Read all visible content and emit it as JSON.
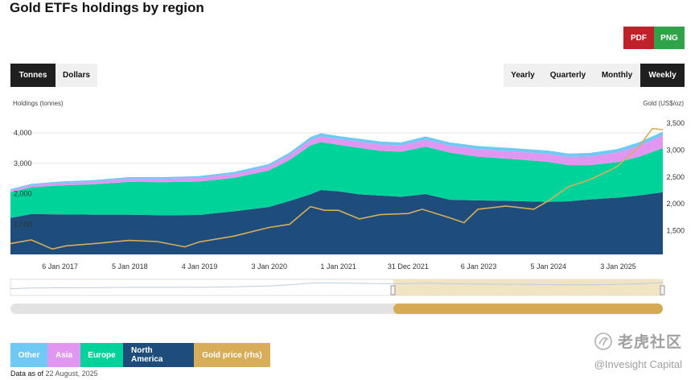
{
  "title": "Gold ETFs holdings by region",
  "export": {
    "pdf_label": "PDF",
    "png_label": "PNG"
  },
  "unit_toggle": {
    "items": [
      "Tonnes",
      "Dollars"
    ],
    "selected": "Tonnes"
  },
  "period_toggle": {
    "items": [
      "Yearly",
      "Quarterly",
      "Monthly",
      "Weekly"
    ],
    "selected": "Weekly"
  },
  "footer": {
    "data_as_of_label": "Data as of",
    "data_as_of_date": "22 August, 2025"
  },
  "watermark": {
    "cn": "老虎社区",
    "en": "@Invesight Capital"
  },
  "colors": {
    "other": "#6ec9f5",
    "asia": "#e196f2",
    "europe": "#00d39a",
    "north_america": "#1e4d7b",
    "gold": "#d8ad58",
    "active_toggle": "#1f1f1f"
  },
  "icons": {
    "watermark": "tiger-logo-icon",
    "navigator_handle": "grip-handle-icon"
  },
  "chart_data": {
    "type": "area",
    "title": "Gold ETFs holdings by region",
    "ylabel_left": "Holdings (tonnes)",
    "ylabel_right": "Gold (US$/oz)",
    "y_left_ticks": [
      1000,
      2000,
      3000,
      4000
    ],
    "y_left_tick_labels": [
      "1,000",
      "2,000",
      "3,000",
      "4,000"
    ],
    "y_left_range": [
      0,
      4800
    ],
    "y_right_ticks": [
      1500,
      2000,
      2500,
      3000,
      3500
    ],
    "y_right_tick_labels": [
      "1,500",
      "2,000",
      "2,500",
      "3,000",
      "3,500"
    ],
    "y_right_range": [
      1060,
      3770
    ],
    "x_range": [
      2016.3,
      2025.65
    ],
    "x_tick_values": [
      2017.01,
      2018.01,
      2019.01,
      2020.01,
      2021.0,
      2022.0,
      2023.01,
      2024.01,
      2025.01
    ],
    "x_tick_labels": [
      "6 Jan 2017",
      "5 Jan 2018",
      "4 Jan 2019",
      "3 Jan 2020",
      "1 Jan 2021",
      "31 Dec 2021",
      "6 Jan 2023",
      "5 Jan 2024",
      "3 Jan 2025"
    ],
    "stack_order": [
      "North America",
      "Europe",
      "Asia",
      "Other"
    ],
    "x": [
      2016.3,
      2016.6,
      2017.0,
      2017.5,
      2018.0,
      2018.5,
      2019.0,
      2019.5,
      2020.0,
      2020.3,
      2020.6,
      2020.75,
      2021.0,
      2021.3,
      2021.6,
      2021.9,
      2022.25,
      2022.6,
      2023.0,
      2023.5,
      2024.0,
      2024.3,
      2024.6,
      2025.0,
      2025.3,
      2025.65
    ],
    "series": [
      {
        "name": "North America",
        "values": [
          1200,
          1330,
          1320,
          1310,
          1310,
          1290,
          1300,
          1420,
          1560,
          1760,
          1980,
          2120,
          2080,
          1980,
          1940,
          1900,
          1990,
          1800,
          1780,
          1760,
          1730,
          1750,
          1810,
          1870,
          1940,
          2050
        ]
      },
      {
        "name": "Europe",
        "values": [
          850,
          880,
          950,
          1000,
          1080,
          1090,
          1100,
          1100,
          1200,
          1350,
          1610,
          1580,
          1530,
          1530,
          1470,
          1480,
          1560,
          1550,
          1440,
          1380,
          1320,
          1190,
          1130,
          1170,
          1270,
          1450
        ]
      },
      {
        "name": "Asia",
        "values": [
          60,
          70,
          80,
          90,
          100,
          110,
          120,
          130,
          140,
          160,
          180,
          190,
          190,
          200,
          210,
          210,
          230,
          230,
          240,
          250,
          260,
          270,
          290,
          320,
          360,
          420
        ]
      },
      {
        "name": "Other",
        "values": [
          40,
          45,
          50,
          50,
          55,
          55,
          60,
          65,
          75,
          85,
          95,
          100,
          100,
          100,
          100,
          100,
          105,
          105,
          110,
          110,
          110,
          110,
          110,
          110,
          115,
          120
        ]
      },
      {
        "name": "Gold price (rhs)",
        "axis": "right",
        "x": [
          2016.3,
          2016.6,
          2016.9,
          2017.1,
          2017.5,
          2018.0,
          2018.4,
          2018.8,
          2019.0,
          2019.5,
          2020.0,
          2020.3,
          2020.6,
          2020.8,
          2021.0,
          2021.3,
          2021.6,
          2022.0,
          2022.2,
          2022.6,
          2022.8,
          2023.0,
          2023.4,
          2023.8,
          2024.0,
          2024.3,
          2024.6,
          2024.9,
          2025.0,
          2025.3,
          2025.5,
          2025.65
        ],
        "values": [
          1260,
          1330,
          1160,
          1220,
          1260,
          1320,
          1300,
          1200,
          1290,
          1400,
          1560,
          1620,
          1950,
          1880,
          1880,
          1720,
          1800,
          1820,
          1900,
          1740,
          1650,
          1900,
          1960,
          1900,
          2050,
          2320,
          2450,
          2630,
          2700,
          3050,
          3400,
          3380
        ]
      }
    ],
    "legend": [
      "Other",
      "Asia",
      "Europe",
      "North America",
      "Gold price (rhs)"
    ],
    "legend_placement": "bottom-left",
    "grid": "horizontal"
  }
}
